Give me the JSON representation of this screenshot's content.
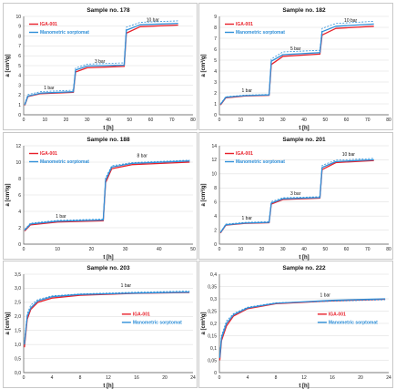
{
  "colors": {
    "iga": "#e8202a",
    "mano": "#2f8fd8",
    "grid": "#d9d9d9"
  },
  "chart_data": [
    {
      "type": "line",
      "title": "Sample no. 178",
      "xlabel": "t [h]",
      "ylabel": "a [cm³/g]",
      "xlim": [
        0,
        80
      ],
      "ylim": [
        0,
        10
      ],
      "xticks": [
        0,
        10,
        20,
        30,
        40,
        50,
        60,
        70,
        80
      ],
      "yticks": [
        0,
        1,
        2,
        3,
        4,
        5,
        6,
        7,
        8,
        9,
        10
      ],
      "legend_position": "top-left",
      "steps": [
        {
          "start": 0,
          "end": 24,
          "level": 2.25,
          "rise": 1.3
        },
        {
          "start": 24,
          "end": 48,
          "level": 4.9,
          "rise": 1.1
        },
        {
          "start": 48,
          "end": 73,
          "level": 9.1,
          "rise": 1.4
        }
      ],
      "annotations": [
        {
          "text": "1 bar",
          "x": 12,
          "y": 2.6
        },
        {
          "text": "3 bar",
          "x": 36,
          "y": 5.3
        },
        {
          "text": "10 bar",
          "x": 61,
          "y": 9.5
        }
      ],
      "series": [
        {
          "name": "IGA-001",
          "color": "#e8202a",
          "offset": 0,
          "dashed": false,
          "values": [
            [
              0.5,
              0.95
            ],
            [
              2,
              1.85
            ],
            [
              8,
              2.15
            ],
            [
              23.5,
              2.28
            ],
            [
              24.5,
              4.35
            ],
            [
              30,
              4.78
            ],
            [
              47.5,
              4.92
            ],
            [
              48.5,
              8.3
            ],
            [
              55,
              8.95
            ],
            [
              73,
              9.12
            ]
          ]
        },
        {
          "name": "Manometric sorptomat",
          "color": "#2f8fd8",
          "offset": 0.12,
          "dashed": false,
          "values": [
            [
              0.5,
              1.0
            ],
            [
              2,
              1.9
            ],
            [
              8,
              2.2
            ],
            [
              23.5,
              2.34
            ],
            [
              24.5,
              4.55
            ],
            [
              30,
              4.95
            ],
            [
              47.5,
              5.05
            ],
            [
              48.5,
              8.6
            ],
            [
              55,
              9.15
            ],
            [
              73,
              9.3
            ]
          ]
        },
        {
          "name": "",
          "color": "#2f8fd8",
          "offset": 0.35,
          "dashed": true,
          "values": [
            [
              0.5,
              1.1
            ],
            [
              2,
              2.05
            ],
            [
              8,
              2.35
            ],
            [
              23.5,
              2.5
            ],
            [
              24.5,
              4.75
            ],
            [
              30,
              5.15
            ],
            [
              47.5,
              5.28
            ],
            [
              48.5,
              8.9
            ],
            [
              55,
              9.4
            ],
            [
              73,
              9.55
            ]
          ]
        }
      ]
    },
    {
      "type": "line",
      "title": "Sample no. 182",
      "xlabel": "t [h]",
      "ylabel": "a [cm³/g]",
      "xlim": [
        0,
        80
      ],
      "ylim": [
        0,
        9
      ],
      "xticks": [
        0,
        10,
        20,
        30,
        40,
        50,
        60,
        70,
        80
      ],
      "yticks": [
        0,
        1,
        2,
        3,
        4,
        5,
        6,
        7,
        8,
        9
      ],
      "legend_position": "top-left",
      "annotations": [
        {
          "text": "1 bar",
          "x": 13,
          "y": 2.1
        },
        {
          "text": "5 bar",
          "x": 36,
          "y": 5.9
        },
        {
          "text": "10 bar",
          "x": 62,
          "y": 8.5
        }
      ],
      "series": [
        {
          "name": "IGA-001",
          "color": "#e8202a",
          "dashed": false,
          "values": [
            [
              0.5,
              0.9
            ],
            [
              3,
              1.55
            ],
            [
              12,
              1.72
            ],
            [
              23.5,
              1.78
            ],
            [
              24.5,
              4.6
            ],
            [
              30,
              5.35
            ],
            [
              47.5,
              5.55
            ],
            [
              48.5,
              7.3
            ],
            [
              55,
              7.9
            ],
            [
              73,
              8.1
            ]
          ]
        },
        {
          "name": "Manometric sorptomat",
          "color": "#2f8fd8",
          "dashed": false,
          "values": [
            [
              0.5,
              0.95
            ],
            [
              3,
              1.6
            ],
            [
              12,
              1.75
            ],
            [
              23.5,
              1.82
            ],
            [
              24.5,
              4.9
            ],
            [
              30,
              5.5
            ],
            [
              47.5,
              5.68
            ],
            [
              48.5,
              7.6
            ],
            [
              55,
              8.1
            ],
            [
              73,
              8.3
            ]
          ]
        },
        {
          "name": "",
          "color": "#2f8fd8",
          "dashed": true,
          "values": [
            [
              0.5,
              1.0
            ],
            [
              3,
              1.65
            ],
            [
              12,
              1.8
            ],
            [
              23.5,
              1.86
            ],
            [
              24.5,
              5.1
            ],
            [
              30,
              5.75
            ],
            [
              47.5,
              5.9
            ],
            [
              48.5,
              7.9
            ],
            [
              55,
              8.35
            ],
            [
              73,
              8.55
            ]
          ]
        }
      ]
    },
    {
      "type": "line",
      "title": "Sample no. 188",
      "xlabel": "t [h]",
      "ylabel": "a [cm³/g]",
      "xlim": [
        0,
        50
      ],
      "ylim": [
        0,
        12
      ],
      "xticks": [
        0,
        10,
        20,
        30,
        40,
        50
      ],
      "yticks": [
        0,
        2,
        4,
        6,
        8,
        10,
        12
      ],
      "legend_position": "top-left",
      "annotations": [
        {
          "text": "1 bar",
          "x": 11,
          "y": 3.25
        },
        {
          "text": "8 bar",
          "x": 35,
          "y": 10.6
        }
      ],
      "series": [
        {
          "name": "IGA-001",
          "color": "#e8202a",
          "dashed": false,
          "values": [
            [
              0.3,
              1.6
            ],
            [
              2,
              2.35
            ],
            [
              10,
              2.7
            ],
            [
              23.5,
              2.85
            ],
            [
              24.2,
              7.5
            ],
            [
              26,
              9.2
            ],
            [
              32,
              9.7
            ],
            [
              49,
              10.0
            ]
          ]
        },
        {
          "name": "Manometric sorptomat",
          "color": "#2f8fd8",
          "dashed": false,
          "values": [
            [
              0.3,
              1.7
            ],
            [
              2,
              2.45
            ],
            [
              10,
              2.8
            ],
            [
              23.5,
              2.95
            ],
            [
              24.2,
              7.8
            ],
            [
              26,
              9.4
            ],
            [
              32,
              9.85
            ],
            [
              49,
              10.15
            ]
          ]
        },
        {
          "name": "",
          "color": "#2f8fd8",
          "dashed": true,
          "values": [
            [
              0.3,
              1.8
            ],
            [
              2,
              2.55
            ],
            [
              10,
              2.9
            ],
            [
              23.5,
              3.05
            ],
            [
              24.2,
              8.1
            ],
            [
              26,
              9.55
            ],
            [
              32,
              9.95
            ],
            [
              49,
              10.25
            ]
          ]
        }
      ]
    },
    {
      "type": "line",
      "title": "Sample no. 201",
      "xlabel": "t [h]",
      "ylabel": "a [cm³/g]",
      "xlim": [
        0,
        80
      ],
      "ylim": [
        0,
        14
      ],
      "xticks": [
        0,
        10,
        20,
        30,
        40,
        50,
        60,
        70,
        80
      ],
      "yticks": [
        0,
        2,
        4,
        6,
        8,
        10,
        12,
        14
      ],
      "legend_position": "top-left",
      "annotations": [
        {
          "text": "1 bar",
          "x": 13,
          "y": 3.5
        },
        {
          "text": "3 bar",
          "x": 36,
          "y": 7.0
        },
        {
          "text": "10 bar",
          "x": 61,
          "y": 12.6
        }
      ],
      "series": [
        {
          "name": "IGA-001",
          "color": "#e8202a",
          "dashed": false,
          "values": [
            [
              0.5,
              1.6
            ],
            [
              3,
              2.7
            ],
            [
              12,
              2.95
            ],
            [
              23.5,
              3.05
            ],
            [
              24.5,
              5.7
            ],
            [
              30,
              6.35
            ],
            [
              47.5,
              6.55
            ],
            [
              48.5,
              10.6
            ],
            [
              55,
              11.6
            ],
            [
              73,
              11.9
            ]
          ]
        },
        {
          "name": "Manometric sorptomat",
          "color": "#2f8fd8",
          "dashed": false,
          "values": [
            [
              0.5,
              1.65
            ],
            [
              3,
              2.75
            ],
            [
              12,
              3.0
            ],
            [
              23.5,
              3.1
            ],
            [
              24.5,
              5.85
            ],
            [
              30,
              6.45
            ],
            [
              47.5,
              6.62
            ],
            [
              48.5,
              10.9
            ],
            [
              55,
              11.75
            ],
            [
              73,
              12.0
            ]
          ]
        },
        {
          "name": "",
          "color": "#2f8fd8",
          "dashed": true,
          "values": [
            [
              0.5,
              1.7
            ],
            [
              3,
              2.85
            ],
            [
              12,
              3.1
            ],
            [
              23.5,
              3.2
            ],
            [
              24.5,
              6.05
            ],
            [
              30,
              6.6
            ],
            [
              47.5,
              6.75
            ],
            [
              48.5,
              11.2
            ],
            [
              55,
              11.95
            ],
            [
              73,
              12.2
            ]
          ]
        }
      ]
    },
    {
      "type": "line",
      "title": "Sample no. 203",
      "xlabel": "t [h]",
      "ylabel": "a [cm³/g]",
      "xlim": [
        0,
        24
      ],
      "ylim": [
        0,
        3.5
      ],
      "xticks": [
        0,
        4,
        8,
        12,
        16,
        20,
        24
      ],
      "yticks": [
        0,
        0.5,
        1,
        1.5,
        2,
        2.5,
        3,
        3.5
      ],
      "ytick_labels": [
        "0,0",
        "0,5",
        "1,0",
        "1,5",
        "2,0",
        "2,5",
        "3,0",
        "3,5"
      ],
      "legend_position": "center-right",
      "annotations": [
        {
          "text": "1 bar",
          "x": 14.5,
          "y": 3.05
        }
      ],
      "series": [
        {
          "name": "IGA-001",
          "color": "#e8202a",
          "dashed": false,
          "values": [
            [
              0.1,
              0.9
            ],
            [
              0.5,
              1.9
            ],
            [
              1,
              2.25
            ],
            [
              2,
              2.5
            ],
            [
              4,
              2.65
            ],
            [
              8,
              2.75
            ],
            [
              16,
              2.82
            ],
            [
              23.5,
              2.85
            ]
          ]
        },
        {
          "name": "Manometric sorptomat",
          "color": "#2f8fd8",
          "dashed": false,
          "values": [
            [
              0.1,
              1.0
            ],
            [
              0.5,
              2.0
            ],
            [
              1,
              2.3
            ],
            [
              2,
              2.55
            ],
            [
              4,
              2.7
            ],
            [
              8,
              2.78
            ],
            [
              16,
              2.83
            ],
            [
              23.5,
              2.86
            ]
          ]
        },
        {
          "name": "",
          "color": "#2f8fd8",
          "dashed": true,
          "values": [
            [
              0.1,
              1.1
            ],
            [
              0.5,
              2.1
            ],
            [
              1,
              2.4
            ],
            [
              2,
              2.6
            ],
            [
              4,
              2.73
            ],
            [
              8,
              2.8
            ],
            [
              16,
              2.86
            ],
            [
              23.5,
              2.9
            ]
          ]
        }
      ]
    },
    {
      "type": "line",
      "title": "Sample no. 222",
      "xlabel": "t [h]",
      "ylabel": "a [cm³/g]",
      "xlim": [
        0,
        24
      ],
      "ylim": [
        0,
        0.4
      ],
      "xticks": [
        0,
        4,
        8,
        12,
        16,
        20,
        24
      ],
      "yticks": [
        0,
        0.05,
        0.1,
        0.15,
        0.2,
        0.25,
        0.3,
        0.35,
        0.4
      ],
      "ytick_labels": [
        "0",
        "0,05",
        "0,1",
        "0,15",
        "0,2",
        "0,25",
        "0,3",
        "0,35",
        "0,4"
      ],
      "legend_position": "center-right",
      "annotations": [
        {
          "text": "1 bar",
          "x": 15,
          "y": 0.31
        }
      ],
      "series": [
        {
          "name": "IGA-001",
          "color": "#e8202a",
          "dashed": false,
          "values": [
            [
              0.05,
              0.05
            ],
            [
              0.3,
              0.13
            ],
            [
              1,
              0.19
            ],
            [
              2,
              0.23
            ],
            [
              4,
              0.26
            ],
            [
              8,
              0.28
            ],
            [
              16,
              0.292
            ],
            [
              23.5,
              0.298
            ]
          ]
        },
        {
          "name": "Manometric sorptomat",
          "color": "#2f8fd8",
          "dashed": false,
          "values": [
            [
              0.05,
              0.06
            ],
            [
              0.3,
              0.14
            ],
            [
              1,
              0.2
            ],
            [
              2,
              0.235
            ],
            [
              4,
              0.263
            ],
            [
              8,
              0.282
            ],
            [
              16,
              0.294
            ],
            [
              23.5,
              0.3
            ]
          ]
        },
        {
          "name": "",
          "color": "#2f8fd8",
          "dashed": true,
          "values": [
            [
              0.05,
              0.07
            ],
            [
              0.3,
              0.15
            ],
            [
              1,
              0.21
            ],
            [
              2,
              0.24
            ],
            [
              4,
              0.266
            ],
            [
              8,
              0.284
            ],
            [
              16,
              0.29
            ],
            [
              23.5,
              0.296
            ]
          ]
        }
      ]
    }
  ]
}
